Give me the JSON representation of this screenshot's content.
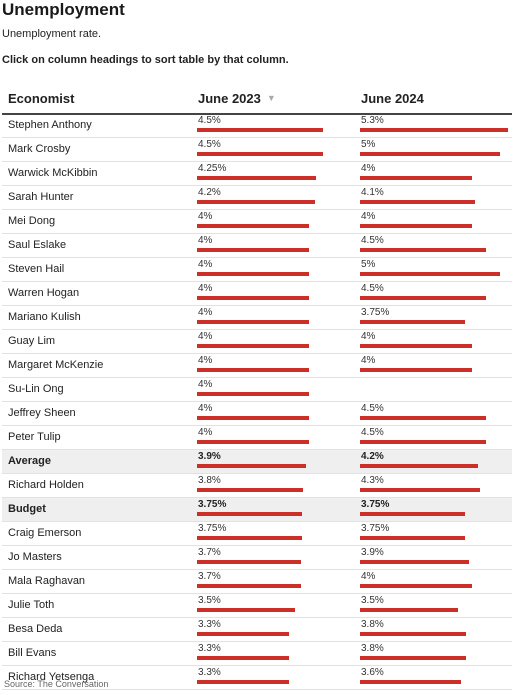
{
  "title": "Unemployment",
  "subtitle": "Unemployment rate.",
  "instructions": "Click on column headings to sort table by that column.",
  "source": "Source: The Conversation",
  "colors": {
    "bar": "#cc2f27",
    "highlight_row": "#efefef"
  },
  "chart_data": {
    "type": "table",
    "columns": [
      "Economist",
      "June 2023",
      "June 2024"
    ],
    "sorted_by": "June 2023",
    "sort_indicator_icon": "sort-descending-icon",
    "bar_scale_max": 5.5,
    "rows": [
      {
        "name": "Stephen Anthony",
        "june_2023": "4.5%",
        "june_2024": "5.3%",
        "v2023": 4.5,
        "v2024": 5.3
      },
      {
        "name": "Mark Crosby",
        "june_2023": "4.5%",
        "june_2024": "5%",
        "v2023": 4.5,
        "v2024": 5.0
      },
      {
        "name": "Warwick McKibbin",
        "june_2023": "4.25%",
        "june_2024": "4%",
        "v2023": 4.25,
        "v2024": 4.0
      },
      {
        "name": "Sarah Hunter",
        "june_2023": "4.2%",
        "june_2024": "4.1%",
        "v2023": 4.2,
        "v2024": 4.1
      },
      {
        "name": "Mei Dong",
        "june_2023": "4%",
        "june_2024": "4%",
        "v2023": 4.0,
        "v2024": 4.0
      },
      {
        "name": "Saul Eslake",
        "june_2023": "4%",
        "june_2024": "4.5%",
        "v2023": 4.0,
        "v2024": 4.5
      },
      {
        "name": "Steven Hail",
        "june_2023": "4%",
        "june_2024": "5%",
        "v2023": 4.0,
        "v2024": 5.0
      },
      {
        "name": "Warren Hogan",
        "june_2023": "4%",
        "june_2024": "4.5%",
        "v2023": 4.0,
        "v2024": 4.5
      },
      {
        "name": "Mariano Kulish",
        "june_2023": "4%",
        "june_2024": "3.75%",
        "v2023": 4.0,
        "v2024": 3.75
      },
      {
        "name": "Guay Lim",
        "june_2023": "4%",
        "june_2024": "4%",
        "v2023": 4.0,
        "v2024": 4.0
      },
      {
        "name": "Margaret McKenzie",
        "june_2023": "4%",
        "june_2024": "4%",
        "v2023": 4.0,
        "v2024": 4.0
      },
      {
        "name": "Su-Lin Ong",
        "june_2023": "4%",
        "june_2024": "",
        "v2023": 4.0,
        "v2024": null
      },
      {
        "name": "Jeffrey Sheen",
        "june_2023": "4%",
        "june_2024": "4.5%",
        "v2023": 4.0,
        "v2024": 4.5
      },
      {
        "name": "Peter Tulip",
        "june_2023": "4%",
        "june_2024": "4.5%",
        "v2023": 4.0,
        "v2024": 4.5
      },
      {
        "name": "Average",
        "june_2023": "3.9%",
        "june_2024": "4.2%",
        "v2023": 3.9,
        "v2024": 4.2,
        "bold": true,
        "highlight": true
      },
      {
        "name": "Richard Holden",
        "june_2023": "3.8%",
        "june_2024": "4.3%",
        "v2023": 3.8,
        "v2024": 4.3
      },
      {
        "name": "Budget",
        "june_2023": "3.75%",
        "june_2024": "3.75%",
        "v2023": 3.75,
        "v2024": 3.75,
        "bold": true,
        "highlight": true
      },
      {
        "name": "Craig Emerson",
        "june_2023": "3.75%",
        "june_2024": "3.75%",
        "v2023": 3.75,
        "v2024": 3.75
      },
      {
        "name": "Jo Masters",
        "june_2023": "3.7%",
        "june_2024": "3.9%",
        "v2023": 3.7,
        "v2024": 3.9
      },
      {
        "name": "Mala Raghavan",
        "june_2023": "3.7%",
        "june_2024": "4%",
        "v2023": 3.7,
        "v2024": 4.0
      },
      {
        "name": "Julie Toth",
        "june_2023": "3.5%",
        "june_2024": "3.5%",
        "v2023": 3.5,
        "v2024": 3.5
      },
      {
        "name": "Besa Deda",
        "june_2023": "3.3%",
        "june_2024": "3.8%",
        "v2023": 3.3,
        "v2024": 3.8
      },
      {
        "name": "Bill Evans",
        "june_2023": "3.3%",
        "june_2024": "3.8%",
        "v2023": 3.3,
        "v2024": 3.8
      },
      {
        "name": "Richard Yetsenga",
        "june_2023": "3.3%",
        "june_2024": "3.6%",
        "v2023": 3.3,
        "v2024": 3.6
      }
    ]
  }
}
